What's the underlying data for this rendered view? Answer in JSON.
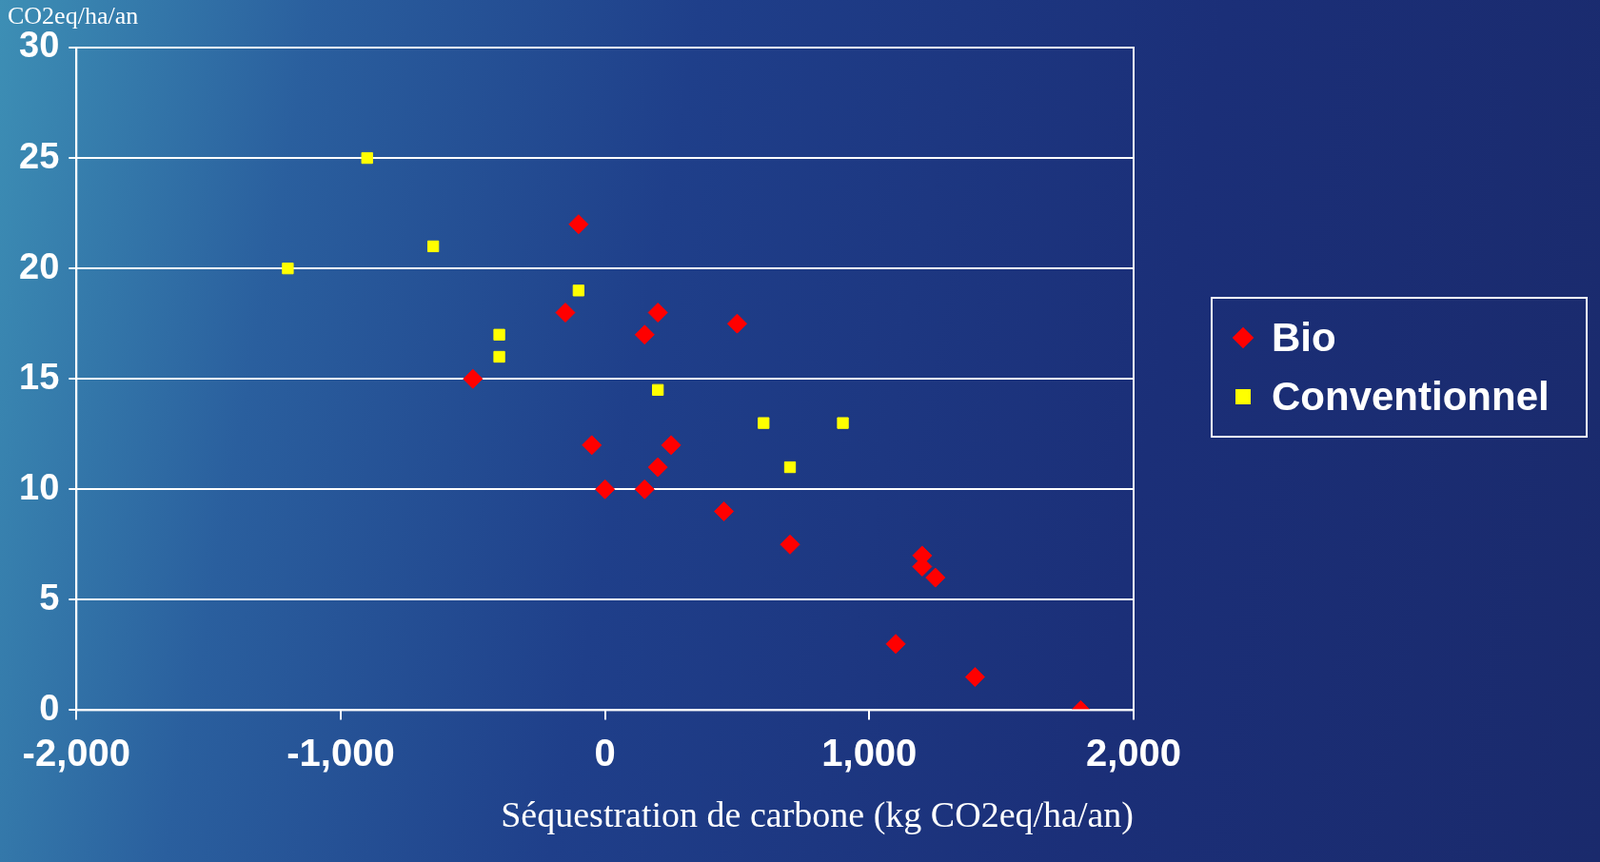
{
  "chart_data": {
    "type": "scatter",
    "ylabel": "CO2eq/ha/an",
    "xlabel": "Séquestration de carbone (kg CO2eq/ha/an)",
    "xlim": [
      -2000,
      2000
    ],
    "xticks": [
      -2000,
      -1000,
      0,
      1000,
      2000
    ],
    "ylim": [
      0,
      30
    ],
    "yticks": [
      0,
      5,
      10,
      15,
      20,
      25,
      30
    ],
    "grid": true,
    "legend": "right",
    "series": [
      {
        "name": "Bio",
        "color": "#ff0000",
        "marker": "diamond",
        "x": [
          -100,
          -150,
          200,
          150,
          500,
          -500,
          -50,
          250,
          200,
          0,
          150,
          450,
          700,
          1200,
          1200,
          1250,
          1100,
          1400,
          1800
        ],
        "values": [
          22,
          18,
          18,
          17,
          17.5,
          15,
          12,
          12,
          11,
          10,
          10,
          9,
          7.5,
          7,
          6.5,
          6,
          3,
          1.5,
          0
        ]
      },
      {
        "name": "Conventionnel",
        "color": "#ffff00",
        "marker": "square",
        "x": [
          -1200,
          -900,
          -650,
          -400,
          -400,
          -100,
          200,
          600,
          900,
          700
        ],
        "values": [
          20,
          25,
          21,
          17,
          16,
          19,
          14.5,
          13,
          13,
          11
        ]
      }
    ]
  }
}
